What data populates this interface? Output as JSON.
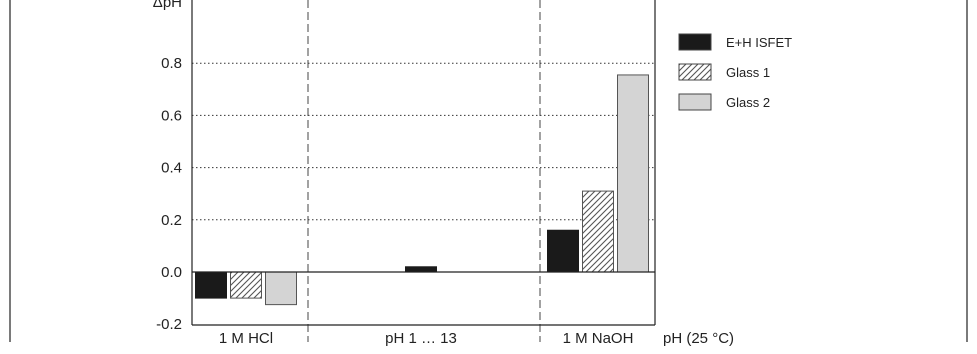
{
  "chart_data": {
    "type": "bar",
    "title": "",
    "ylabel": "ΔpH",
    "xlabel": "pH (25 °C)",
    "ylim": [
      -0.2,
      0.9
    ],
    "yticks": [
      "-0.2",
      "0.0",
      "0.2",
      "0.4",
      "0.6",
      "0.8"
    ],
    "grid": "horizontal dotted",
    "legend": "top-right",
    "categories": [
      "1 M HCl",
      "pH 1 … 13",
      "1 M NaOH"
    ],
    "series": [
      {
        "name": "E+H ISFET",
        "fill": "solid",
        "color": "#1a1a1a",
        "values": [
          -0.1,
          0.02,
          0.16
        ]
      },
      {
        "name": "Glass 1",
        "fill": "hatched",
        "color": "#555555",
        "values": [
          -0.1,
          null,
          0.31
        ]
      },
      {
        "name": "Glass 2",
        "fill": "solid",
        "color": "#d4d4d4",
        "values": [
          -0.125,
          null,
          0.755
        ]
      }
    ]
  }
}
